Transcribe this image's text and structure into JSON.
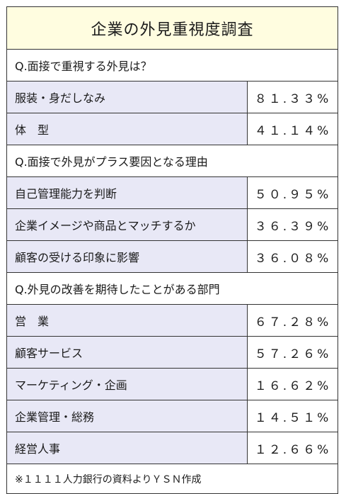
{
  "chart_data": {
    "type": "table",
    "title": "企業の外見重視度調査",
    "sections": [
      {
        "question": "Q.面接で重視する外見は？",
        "items": [
          {
            "label": "服装・身だしなみ",
            "value": 81.33,
            "value_text": "８１.３３%"
          },
          {
            "label": "体　型",
            "value": 41.14,
            "value_text": "４１.１４%"
          }
        ]
      },
      {
        "question": "Q.面接で外見がプラス要因となる理由",
        "items": [
          {
            "label": "自己管理能力を判断",
            "value": 50.95,
            "value_text": "５０.９５%"
          },
          {
            "label": "企業イメージや商品とマッチするか",
            "value": 36.39,
            "value_text": "３６.３９%"
          },
          {
            "label": "顧客の受ける印象に影響",
            "value": 36.08,
            "value_text": "３６.０８%"
          }
        ]
      },
      {
        "question": "Q.外見の改善を期待したことがある部門",
        "items": [
          {
            "label": "営　業",
            "value": 67.28,
            "value_text": "６７.２８%"
          },
          {
            "label": "顧客サービス",
            "value": 57.26,
            "value_text": "５７.２６%"
          },
          {
            "label": "マーケティング・企画",
            "value": 16.62,
            "value_text": "１６.６２%"
          },
          {
            "label": "企業管理・総務",
            "value": 14.51,
            "value_text": "１４.５１%"
          },
          {
            "label": "経営人事",
            "value": 12.66,
            "value_text": "１２.６６%"
          }
        ]
      }
    ],
    "source": "※１１１１人力銀行の資料よりＹＳＮ作成"
  },
  "colors": {
    "title_background": "#fffde0",
    "label_background": "#e8e8f6",
    "border": "#333333"
  }
}
